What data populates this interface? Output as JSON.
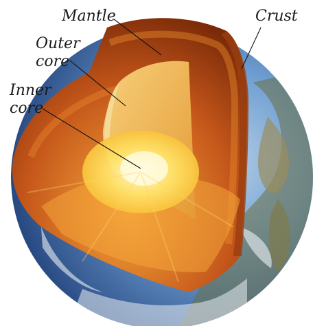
{
  "labels": {
    "mantle": "Mantle",
    "crust": "Crust",
    "outer_core_line1": "Outer",
    "outer_core_line2": "core",
    "inner_core_line1": "Inner",
    "inner_core_line2": "core"
  },
  "colors": {
    "background": "#ffffff",
    "ocean": "#2f5d9c",
    "ocean_light": "#6f9fd2",
    "land": "#8a8f5a",
    "cloud": "#e9eef4",
    "mantle_outer": "#7a2a08",
    "mantle_mid": "#c9581a",
    "mantle_inner": "#f08a1e",
    "outer_core": "#f2b24a",
    "inner_core": "#fff4a0",
    "leader_line": "#111111"
  }
}
